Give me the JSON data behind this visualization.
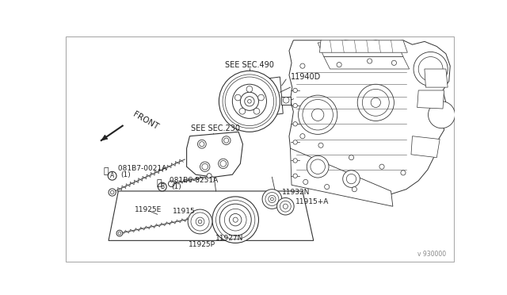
{
  "bg_color": "#ffffff",
  "line_color": "#333333",
  "text_color": "#222222",
  "thin_line": 0.5,
  "med_line": 0.8,
  "thick_line": 1.0,
  "watermark": "v 930000",
  "labels": {
    "see_sec_490": "SEE SEC.490",
    "see_sec_230": "SEE SEC.230",
    "part_11940D": "11940D",
    "part_A081B7_line1": " 081B7-0021A",
    "part_A081B7_line2": "(1)",
    "part_B081B6_line1": " 081B6-8251A",
    "part_B081B6_line2": "(1)",
    "part_11932N": "11932N",
    "part_11915pA": "11915+A",
    "part_11915": "11915",
    "part_11925E": "11925E",
    "part_11927N": "11927N",
    "part_11925P": "11925P",
    "front_label": "FRONT",
    "circleA": "Ⓐ",
    "circleB": "Ⓑ"
  }
}
